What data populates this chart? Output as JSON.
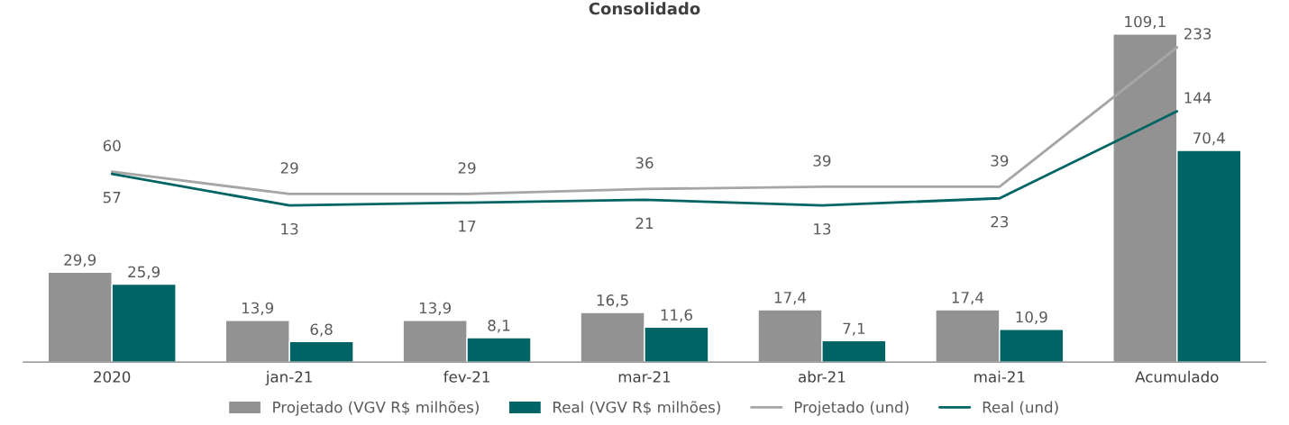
{
  "chart_data": {
    "type": "bar",
    "title": "Consolidado",
    "categories": [
      "2020",
      "jan-21",
      "fev-21",
      "mar-21",
      "abr-21",
      "mai-21",
      "Acumulado"
    ],
    "series": [
      {
        "name": "Projetado (VGV R$ milhões)",
        "color": "#929292",
        "values": [
          29.9,
          13.9,
          13.9,
          16.5,
          17.4,
          17.4,
          109.1
        ],
        "value_labels": [
          "29,9",
          "13,9",
          "13,9",
          "16,5",
          "17,4",
          "17,4",
          "109,1"
        ]
      },
      {
        "name": "Real (VGV R$ milhões)",
        "color": "#006465",
        "values": [
          25.9,
          6.8,
          8.1,
          11.6,
          7.1,
          10.9,
          70.4
        ],
        "value_labels": [
          "25,9",
          "6,8",
          "8,1",
          "11,6",
          "7,1",
          "10,9",
          "70,4"
        ]
      },
      {
        "name": "Projetado (und)",
        "type": "line",
        "axis": "y2",
        "color": "#a6a6a6",
        "values": [
          60,
          29,
          29,
          36,
          39,
          39,
          233
        ]
      },
      {
        "name": "Real (und)",
        "type": "line",
        "axis": "y2",
        "color": "#006465",
        "values": [
          57,
          13,
          17,
          21,
          13,
          23,
          144
        ]
      }
    ],
    "tick_labels": "x",
    "data_labels": true,
    "legend": "bottom"
  }
}
